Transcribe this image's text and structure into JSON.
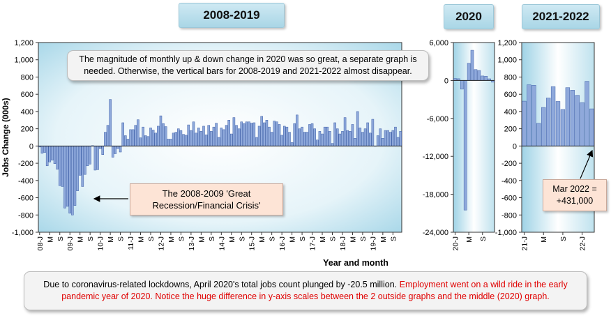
{
  "titles": {
    "panel1": "2008-2019",
    "panel2": "2020",
    "panel3": "2021-2022"
  },
  "annotations": {
    "top_note": "The magnitude of monthly up & down change in 2020 was so great, a separate graph is needed. Otherwise, the vertical bars for 2008-2019 and 2021-2022 almost disappear.",
    "recession_line1": "The 2008-2009 'Great",
    "recession_line2": "Recession/Financial Crisis'",
    "mar_line1": "Mar 2022 =",
    "mar_line2": "+431,000"
  },
  "footer": {
    "black_text": "Due to coronavirus-related lockdowns, April 2020's total jobs count plunged by -20.5 million. ",
    "red_text": "Employment went on a wild ride in the early pandemic year of 2020. Notice the huge difference in y-axis scales between the 2 outside graphs and the middle (2020) graph."
  },
  "colors": {
    "bar_fill": "#8fa9db",
    "bar_stroke": "#3d5fa8",
    "plot_bg_edge": "#9fd3e6",
    "plot_bg_center": "#ffffff",
    "title_box": "#b7dde9",
    "callout_peach": "#fde4d6",
    "red_text": "#e00000"
  },
  "chart_data": [
    {
      "type": "bar",
      "title": "2008-2019",
      "ylabel": "Jobs Change (000s)",
      "xlabel": "Year and month",
      "ylim": [
        -1000,
        1200
      ],
      "yticks": [
        "1,200",
        "1,000",
        "800",
        "600",
        "400",
        "200",
        "0",
        "-200",
        "-400",
        "-600",
        "-800",
        "-1,000"
      ],
      "tick_labels": [
        "08-J",
        "M",
        "S",
        "09-J",
        "M",
        "S",
        "10-J",
        "M",
        "S",
        "11-J",
        "M",
        "S",
        "12-J",
        "M",
        "S",
        "13-J",
        "M",
        "S",
        "14-J",
        "M",
        "S",
        "15-J",
        "M",
        "S",
        "16-J",
        "M",
        "S",
        "17-J",
        "M",
        "S",
        "18-J",
        "M",
        "S",
        "19-J",
        "M",
        "S"
      ],
      "x_start": "2008-01",
      "values": [
        -12,
        -85,
        -75,
        -230,
        -185,
        -165,
        -205,
        -270,
        -460,
        -470,
        -720,
        -700,
        -780,
        -800,
        -690,
        -520,
        -340,
        -470,
        -330,
        -230,
        -210,
        5,
        -280,
        -275,
        -30,
        -100,
        160,
        240,
        540,
        -130,
        -90,
        -30,
        -70,
        270,
        120,
        80,
        190,
        190,
        240,
        305,
        95,
        220,
        120,
        110,
        210,
        185,
        150,
        230,
        350,
        260,
        225,
        80,
        80,
        150,
        160,
        200,
        180,
        135,
        125,
        245,
        180,
        280,
        150,
        210,
        170,
        230,
        130,
        240,
        170,
        220,
        265,
        100,
        210,
        190,
        240,
        300,
        140,
        330,
        240,
        200,
        280,
        260,
        280,
        280,
        265,
        270,
        100,
        230,
        345,
        270,
        300,
        220,
        160,
        290,
        280,
        250,
        125,
        230,
        220,
        160,
        40,
        260,
        360,
        200,
        220,
        160,
        160,
        250,
        260,
        200,
        70,
        170,
        140,
        220,
        220,
        170,
        30,
        270,
        200,
        140,
        170,
        330,
        180,
        170,
        250,
        90,
        400,
        210,
        160,
        200,
        270,
        150,
        310,
        1,
        120,
        200,
        90,
        180,
        180,
        160,
        180,
        220,
        100,
        170
      ],
      "annotation": "The 2008-2009 'Great Recession/Financial Crisis'"
    },
    {
      "type": "bar",
      "title": "2020",
      "ylim": [
        -24000,
        6000
      ],
      "yticks": [
        "6,000",
        "0",
        "-6,000",
        "-12,000",
        "-18,000",
        "-24,000"
      ],
      "tick_labels": [
        "20-J",
        "M",
        "S"
      ],
      "x_start": "2020-01",
      "values": [
        315,
        275,
        -1373,
        -20493,
        2725,
        4781,
        1726,
        1583,
        716,
        680,
        264,
        -268
      ]
    },
    {
      "type": "bar",
      "title": "2021-2022",
      "ylim": [
        -1000,
        1200
      ],
      "yticks": [
        "1,200",
        "1,000",
        "800",
        "600",
        "400",
        "200",
        "0",
        "-200",
        "-400",
        "-600",
        "-800",
        "-1,000"
      ],
      "tick_labels": [
        "21-J",
        "M",
        "S",
        "22-J"
      ],
      "x_start": "2021-01",
      "values": [
        520,
        710,
        704,
        263,
        447,
        557,
        689,
        517,
        424,
        677,
        647,
        588,
        504,
        750,
        431
      ],
      "annotation": "Mar 2022 = +431,000"
    }
  ]
}
